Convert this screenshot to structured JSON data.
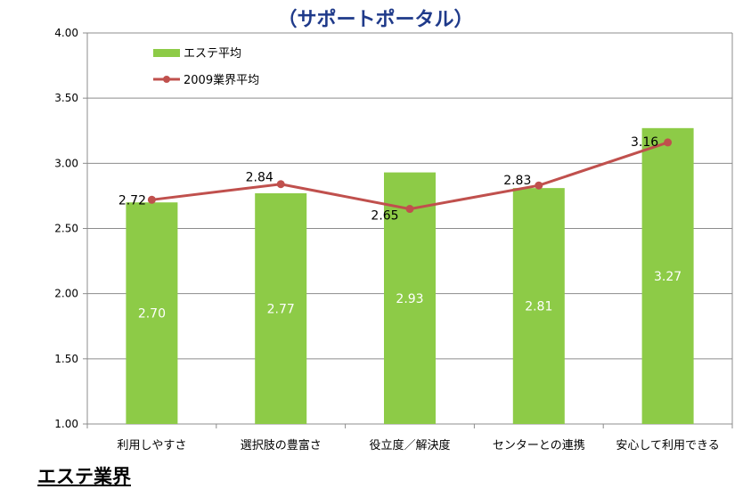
{
  "header": {
    "title": "（サポートポータル）"
  },
  "footer": {
    "title": "エステ業界"
  },
  "colors": {
    "bar": "#8DCB47",
    "line": "#C0504D",
    "grid": "#8C8C8C",
    "title": "#1F3A8A"
  },
  "chart_data": {
    "type": "bar",
    "categories": [
      "利用しやすさ",
      "選択肢の豊富さ",
      "役立度／解決度",
      "センターとの連携",
      "安心して利用できる"
    ],
    "series": [
      {
        "name": "エステ平均",
        "type": "bar",
        "values": [
          2.7,
          2.77,
          2.93,
          2.81,
          3.27
        ],
        "labels": [
          "2.70",
          "2.77",
          "2.93",
          "2.81",
          "3.27"
        ]
      },
      {
        "name": "2009業界平均",
        "type": "line",
        "values": [
          2.72,
          2.84,
          2.65,
          2.83,
          3.16
        ],
        "labels": [
          "2.72",
          "2.84",
          "2.65",
          "2.83",
          "3.16"
        ]
      }
    ],
    "ylim": [
      1.0,
      4.0
    ],
    "yticks": [
      "1.00",
      "1.50",
      "2.00",
      "2.50",
      "3.00",
      "3.50",
      "4.00"
    ],
    "grid": true,
    "legend": "top-left"
  }
}
